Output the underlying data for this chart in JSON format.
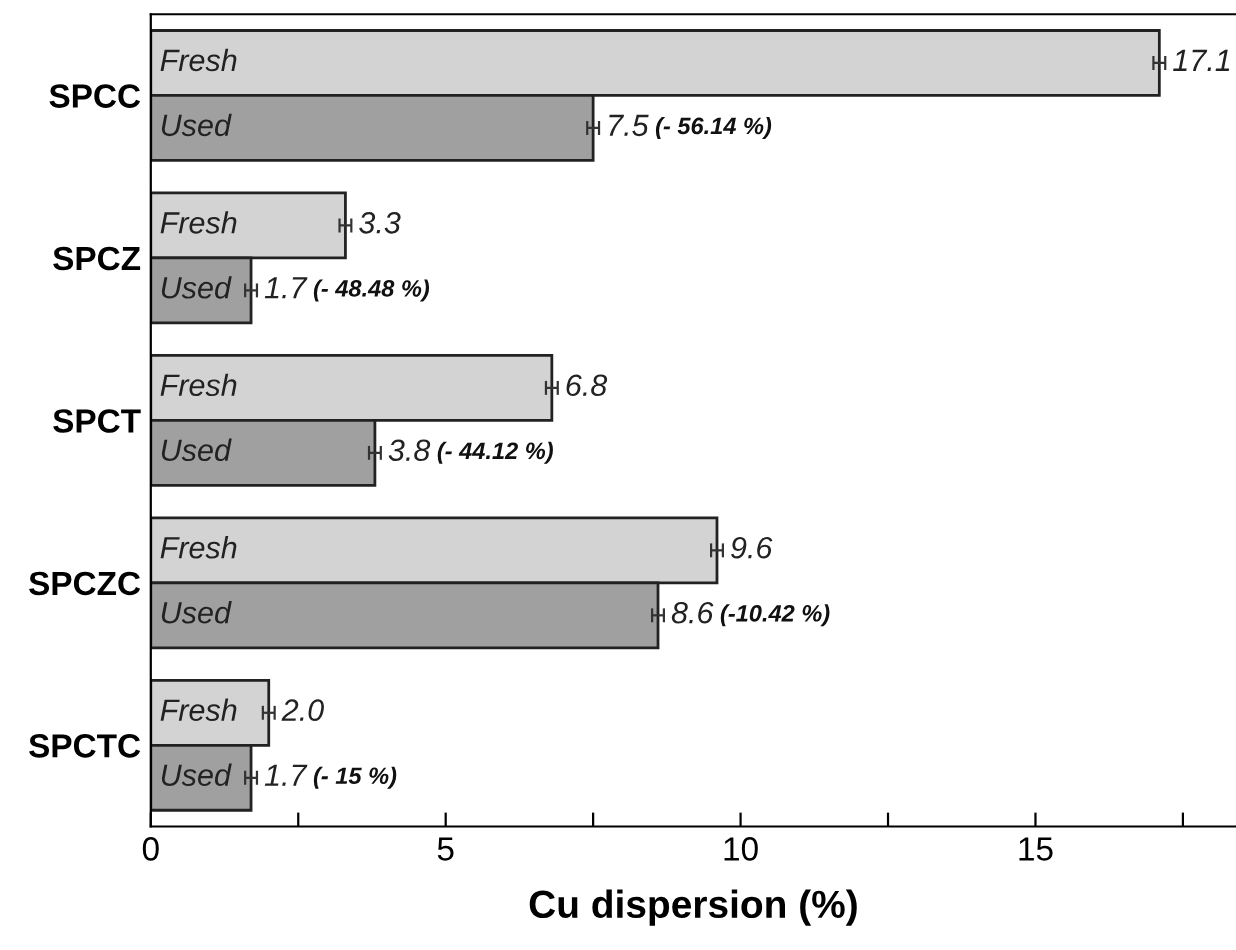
{
  "chart_data": {
    "type": "bar",
    "orientation": "horizontal",
    "xlabel": "Cu dispersion (%)",
    "categories": [
      "SPCC",
      "SPCZ",
      "SPCT",
      "SPCZC",
      "SPCTC"
    ],
    "series": [
      {
        "name": "Fresh",
        "color": "#d3d3d3",
        "values": [
          17.1,
          3.3,
          6.8,
          9.6,
          2.0
        ],
        "errors": [
          0.1,
          0.1,
          0.1,
          0.1,
          0.1
        ],
        "value_labels": [
          "17.1",
          "3.3",
          "6.8",
          "9.6",
          "2.0"
        ]
      },
      {
        "name": "Used",
        "color": "#a0a0a0",
        "values": [
          7.5,
          1.7,
          3.8,
          8.6,
          1.7
        ],
        "errors": [
          0.1,
          0.1,
          0.1,
          0.1,
          0.1
        ],
        "value_labels": [
          "7.5",
          "1.7",
          "3.8",
          "8.6",
          "1.7"
        ]
      }
    ],
    "annotations": [
      {
        "text": "(- 56.14 %)",
        "x": 7.5,
        "y": "SPCC"
      },
      {
        "text": "(- 48.48 %)",
        "x": 1.7,
        "y": "SPCZ"
      },
      {
        "text": "(- 44.12 %)",
        "x": 3.8,
        "y": "SPCT"
      },
      {
        "text": "(-10.42 %)",
        "x": 8.6,
        "y": "SPCZC"
      },
      {
        "text": "(- 15 %)",
        "x": 1.7,
        "y": "SPCTC"
      }
    ],
    "xlim": [
      0,
      18.4
    ],
    "xticks": [
      0,
      {
        "value": 2.5,
        "label": null
      },
      5,
      {
        "value": 7.5,
        "label": null
      },
      10,
      {
        "value": 12.5,
        "label": null
      },
      15,
      {
        "value": 17.5,
        "label": null
      }
    ],
    "legend": false,
    "grid": false
  }
}
